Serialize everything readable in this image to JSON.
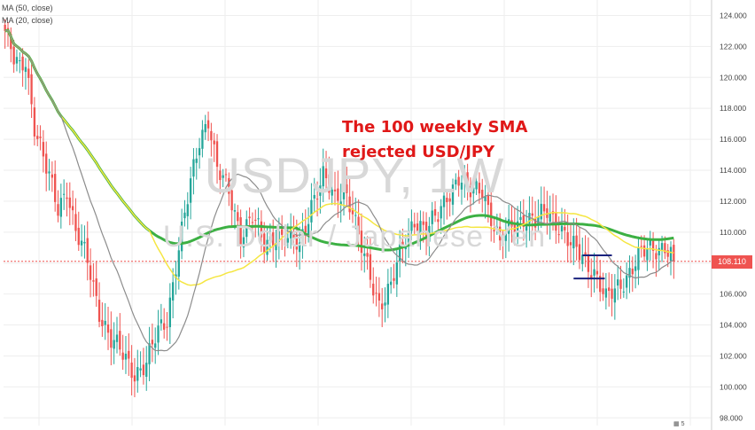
{
  "legend": {
    "ma50": "MA (50, close)",
    "ma20": "MA (20, close)"
  },
  "watermark": {
    "symbol": "USDJPY, 1W",
    "name": "U.S. Dollar / Japanese Yen"
  },
  "annotation": {
    "line1": "The 100 weekly SMA",
    "line2": "rejected USD/JPY"
  },
  "bottom_badge": "5",
  "colors": {
    "up": "#26a69a",
    "down": "#ef5350",
    "ma100": "#3cb043",
    "ma50": "#f5e642",
    "ma20": "#8c8c8c",
    "grid": "#eeeeee",
    "annotation": "#e01818"
  },
  "chart_data": {
    "type": "candlestick",
    "symbol": "USDJPY",
    "timeframe": "1W",
    "ylim": [
      97.5,
      125
    ],
    "y_ticks": [
      "98.000",
      "100.000",
      "102.000",
      "104.000",
      "106.000",
      "108.000",
      "110.000",
      "112.000",
      "114.000",
      "116.000",
      "118.000",
      "120.000",
      "122.000",
      "124.000"
    ],
    "last_price": "108.110",
    "anchors": [
      [
        0,
        123
      ],
      [
        3,
        121
      ],
      [
        5,
        120.5
      ],
      [
        7,
        121.2
      ],
      [
        10,
        117
      ],
      [
        14,
        114
      ],
      [
        18,
        111.5
      ],
      [
        21,
        113
      ],
      [
        24,
        110
      ],
      [
        28,
        108
      ],
      [
        32,
        105
      ],
      [
        36,
        103
      ],
      [
        40,
        102
      ],
      [
        44,
        101
      ],
      [
        48,
        101.5
      ],
      [
        52,
        103.5
      ],
      [
        55,
        104.5
      ],
      [
        58,
        108
      ],
      [
        62,
        112
      ],
      [
        66,
        116
      ],
      [
        69,
        117.5
      ],
      [
        72,
        114
      ],
      [
        76,
        112.5
      ],
      [
        80,
        110
      ],
      [
        84,
        111
      ],
      [
        88,
        109
      ],
      [
        92,
        110
      ],
      [
        96,
        109.5
      ],
      [
        100,
        109
      ],
      [
        104,
        112
      ],
      [
        108,
        113.5
      ],
      [
        112,
        112
      ],
      [
        115,
        113
      ],
      [
        118,
        111.5
      ],
      [
        120,
        109.5
      ],
      [
        124,
        107
      ],
      [
        127,
        105.5
      ],
      [
        131,
        106.5
      ],
      [
        135,
        109
      ],
      [
        139,
        111
      ],
      [
        143,
        110
      ],
      [
        147,
        111
      ],
      [
        150,
        112.5
      ],
      [
        154,
        113.5
      ],
      [
        158,
        112.5
      ],
      [
        162,
        113
      ],
      [
        165,
        111
      ],
      [
        168,
        109
      ],
      [
        172,
        110.5
      ],
      [
        176,
        111
      ],
      [
        180,
        110.5
      ],
      [
        184,
        111.5
      ],
      [
        188,
        110.5
      ],
      [
        192,
        109
      ],
      [
        196,
        108.5
      ],
      [
        200,
        107.5
      ],
      [
        204,
        105.5
      ],
      [
        208,
        106.5
      ],
      [
        212,
        107.5
      ],
      [
        216,
        108.5
      ],
      [
        220,
        109
      ],
      [
        224,
        109.2
      ],
      [
        227,
        108.1
      ]
    ],
    "support_level": 107.0,
    "resistance_level": 108.5,
    "series": [
      {
        "name": "MA (50, close)",
        "period": 50
      },
      {
        "name": "MA (20, close)",
        "period": 20
      },
      {
        "period": 100
      }
    ],
    "grid": true
  }
}
